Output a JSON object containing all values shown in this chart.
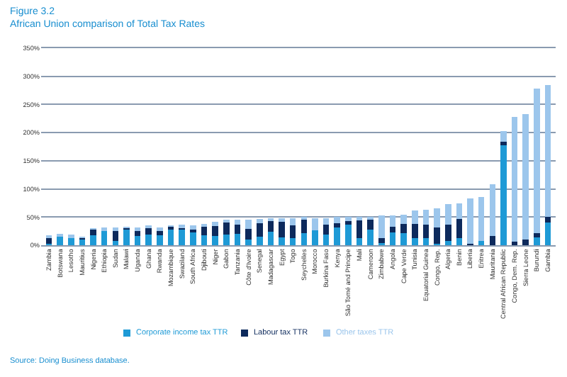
{
  "chart_data": {
    "type": "bar",
    "stacked": true,
    "title": "Figure 3.2",
    "subtitle": "African Union comparison of Total Tax Rates",
    "categories": [
      "Zambia",
      "Botswana",
      "Lesotho",
      "Mauritius",
      "Nigeria",
      "Ethiopia",
      "Sudan",
      "Malawi",
      "Uganda",
      "Ghana",
      "Rwanda",
      "Mozambique",
      "Swaziland",
      "South Africa",
      "Djibouti",
      "Niger",
      "Gabon",
      "Tanzania",
      "Côte d'Ivoire",
      "Senegal",
      "Madagascar",
      "Egypt",
      "Togo",
      "Seychelles",
      "Morocco",
      "Burkina Faso",
      "Kenya",
      "São Tomé and Principe",
      "Mali",
      "Cameroon",
      "Zimbabwe",
      "Angola",
      "Cape Verde",
      "Tunisia",
      "Equatorial Guinea",
      "Congo, Rep.",
      "Algeria",
      "Benin",
      "Liberia",
      "Eritrea",
      "Mauritania",
      "Central African Republic",
      "Congo, Dem. Rep.",
      "Sierra Leone",
      "Burundi",
      "Gambia"
    ],
    "series": [
      {
        "name": "Corporate income tax TTR",
        "color": "#1e9ad6",
        "values": [
          2,
          17,
          15,
          11,
          18,
          25,
          8,
          28,
          16,
          19,
          20,
          29,
          28,
          24,
          18,
          16,
          19,
          20,
          10,
          15,
          24,
          14,
          12,
          22,
          26,
          19,
          32,
          36,
          12,
          28,
          4,
          23,
          21,
          13,
          12,
          2,
          7,
          13,
          0,
          7,
          0,
          177,
          0,
          0,
          14,
          40
        ]
      },
      {
        "name": "Labour tax TTR",
        "color": "#0d2a5c",
        "values": [
          11,
          0,
          0,
          2,
          10,
          0,
          19,
          3,
          11,
          13,
          5,
          4,
          4,
          4,
          17,
          18,
          23,
          17,
          19,
          24,
          20,
          27,
          23,
          25,
          0,
          18,
          7,
          7,
          32,
          19,
          8,
          10,
          17,
          25,
          25,
          30,
          29,
          33,
          3,
          0,
          16,
          7,
          6,
          10,
          8,
          11
        ]
      },
      {
        "name": "Other taxes TTR",
        "color": "#9cc6ec",
        "values": [
          3,
          1,
          4,
          1,
          1,
          6,
          4,
          1,
          4,
          1,
          6,
          2,
          4,
          7,
          3,
          8,
          2,
          8,
          16,
          7,
          3,
          7,
          13,
          2,
          22,
          11,
          11,
          7,
          7,
          4,
          41,
          20,
          16,
          24,
          26,
          34,
          37,
          28,
          80,
          78,
          92,
          19,
          222,
          223,
          256,
          234
        ]
      }
    ],
    "ylim": [
      0,
      350
    ],
    "yticks": [
      {
        "value": 0,
        "label": "0%"
      },
      {
        "value": 50,
        "label": "50%"
      },
      {
        "value": 100,
        "label": "100%"
      },
      {
        "value": 150,
        "label": "150%"
      },
      {
        "value": 200,
        "label": "200%"
      },
      {
        "value": 250,
        "label": "250%"
      },
      {
        "value": 300,
        "label": "300%"
      },
      {
        "value": 350,
        "label": "350%"
      }
    ],
    "grid": "y",
    "legend": "bottom",
    "annotations": [
      "Source: Doing Business database."
    ]
  }
}
